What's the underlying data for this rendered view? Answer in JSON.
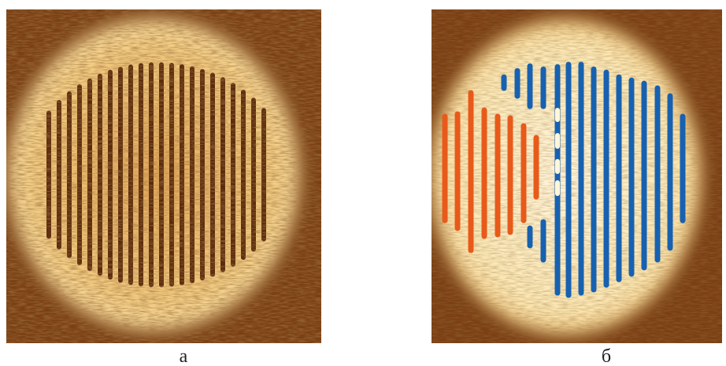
{
  "panels": [
    {
      "label": "а"
    },
    {
      "label": "б"
    }
  ]
}
